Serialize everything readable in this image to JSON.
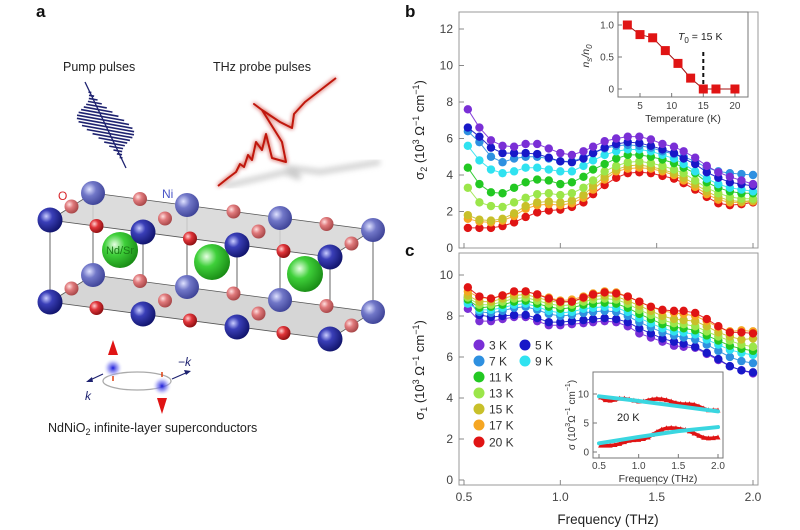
{
  "panel_a": {
    "label": "a",
    "pump_label": "Pump pulses",
    "probe_label": "THz probe pulses",
    "atom_o": "O",
    "atom_ni": "Ni",
    "atom_nd": "Nd/Sr",
    "k_label": "k",
    "minus_k_label": "−k",
    "caption_main": "NdNiO",
    "caption_sub": "2",
    "caption_rest": " infinite-layer superconductors",
    "colors": {
      "ni": "#2a2f9e",
      "o": "#d8262b",
      "nd": "#3fc43a",
      "pulse": "#1e2270",
      "thz": "#c0180c"
    }
  },
  "chart_data": [
    {
      "panel": "b",
      "type": "line",
      "ylabel": [
        {
          "t": "σ"
        },
        {
          "t": "2",
          "s": "sub"
        },
        {
          "t": " (10"
        },
        {
          "t": "3",
          "s": "sup"
        },
        {
          "t": " Ω"
        },
        {
          "t": "−1",
          "s": "sup"
        },
        {
          "t": " cm"
        },
        {
          "t": "−1",
          "s": "sup"
        },
        {
          "t": ")"
        }
      ],
      "xlabel": "",
      "ylim": [
        0,
        12.5
      ],
      "yticks": [
        "0",
        "2",
        "4",
        "6",
        "8",
        "10",
        "12"
      ],
      "xlim": [
        0.5,
        2.0
      ],
      "x": [
        0.52,
        0.58,
        0.64,
        0.7,
        0.76,
        0.82,
        0.88,
        0.94,
        1.0,
        1.06,
        1.12,
        1.17,
        1.23,
        1.29,
        1.35,
        1.41,
        1.47,
        1.53,
        1.59,
        1.64,
        1.7,
        1.76,
        1.82,
        1.88,
        1.94,
        2.0
      ],
      "series": [
        {
          "name": "3 K",
          "color": "#7a2fd6",
          "values": [
            7.6,
            6.6,
            5.9,
            5.6,
            5.55,
            5.7,
            5.7,
            5.45,
            5.2,
            5.1,
            5.3,
            5.55,
            5.85,
            6.0,
            6.1,
            6.1,
            5.95,
            5.7,
            5.55,
            5.3,
            4.95,
            4.5,
            4.15,
            3.9,
            3.7,
            3.5
          ]
        },
        {
          "name": "5 K",
          "color": "#1818c8",
          "values": [
            6.6,
            6.1,
            5.5,
            5.2,
            5.2,
            5.2,
            5.15,
            4.95,
            4.75,
            4.7,
            4.9,
            5.2,
            5.5,
            5.7,
            5.8,
            5.75,
            5.6,
            5.4,
            5.2,
            4.9,
            4.6,
            4.15,
            3.85,
            3.6,
            3.5,
            3.4
          ]
        },
        {
          "name": "7 K",
          "color": "#2e90e0",
          "values": [
            6.4,
            5.8,
            5.0,
            4.7,
            4.9,
            5.0,
            5.0,
            4.9,
            4.75,
            4.75,
            4.95,
            5.2,
            5.45,
            5.6,
            5.65,
            5.6,
            5.5,
            5.3,
            5.15,
            5.0,
            4.75,
            4.4,
            4.2,
            4.1,
            4.05,
            4.0
          ]
        },
        {
          "name": "9 K",
          "color": "#2fe2f0",
          "values": [
            5.6,
            4.8,
            4.3,
            4.1,
            4.2,
            4.4,
            4.4,
            4.3,
            4.2,
            4.2,
            4.5,
            4.8,
            5.1,
            5.3,
            5.4,
            5.4,
            5.3,
            5.1,
            4.9,
            4.6,
            4.2,
            3.8,
            3.5,
            3.3,
            3.2,
            3.1
          ]
        },
        {
          "name": "11 K",
          "color": "#22c822",
          "values": [
            4.4,
            3.5,
            3.05,
            3.0,
            3.3,
            3.6,
            3.75,
            3.7,
            3.5,
            3.6,
            3.9,
            4.3,
            4.6,
            4.9,
            5.1,
            5.1,
            5.0,
            4.85,
            4.65,
            4.4,
            4.1,
            3.6,
            3.3,
            3.1,
            3.0,
            3.0
          ]
        },
        {
          "name": "13 K",
          "color": "#9be64a",
          "values": [
            3.3,
            2.5,
            2.3,
            2.25,
            2.5,
            2.75,
            2.95,
            3.0,
            2.9,
            3.0,
            3.3,
            3.7,
            4.2,
            4.5,
            4.7,
            4.75,
            4.65,
            4.5,
            4.3,
            4.1,
            3.7,
            3.3,
            3.0,
            2.8,
            2.7,
            2.7
          ]
        },
        {
          "name": "15 K",
          "color": "#c8c02a",
          "values": [
            1.8,
            1.55,
            1.5,
            1.6,
            1.9,
            2.3,
            2.5,
            2.55,
            2.5,
            2.6,
            2.9,
            3.4,
            3.9,
            4.3,
            4.5,
            4.55,
            4.45,
            4.3,
            4.1,
            3.85,
            3.5,
            3.1,
            2.8,
            2.6,
            2.55,
            2.6
          ]
        },
        {
          "name": "17 K",
          "color": "#f5a623",
          "values": [
            1.6,
            1.45,
            1.4,
            1.5,
            1.75,
            2.15,
            2.35,
            2.4,
            2.35,
            2.45,
            2.75,
            3.2,
            3.75,
            4.2,
            4.35,
            4.4,
            4.35,
            4.2,
            4.0,
            3.7,
            3.35,
            2.95,
            2.65,
            2.5,
            2.5,
            2.55
          ]
        },
        {
          "name": "20 K",
          "color": "#e01414",
          "values": [
            1.1,
            1.1,
            1.1,
            1.2,
            1.4,
            1.7,
            1.95,
            2.05,
            2.1,
            2.25,
            2.5,
            2.95,
            3.45,
            3.85,
            4.1,
            4.15,
            4.1,
            3.95,
            3.8,
            3.55,
            3.2,
            2.8,
            2.45,
            2.35,
            2.4,
            2.5
          ]
        }
      ],
      "inset": {
        "type": "line",
        "xlabel": "Temperature (K)",
        "ylabel": [
          {
            "t": "n"
          },
          {
            "t": "s",
            "s": "sub"
          },
          {
            "t": "/"
          },
          {
            "t": "n"
          },
          {
            "t": "0",
            "s": "sub"
          }
        ],
        "annotation": [
          {
            "t": "T"
          },
          {
            "t": "0",
            "s": "sub"
          },
          {
            "t": " = 15 K"
          }
        ],
        "xticks": [
          "5",
          "10",
          "15",
          "20"
        ],
        "yticks": [
          "0",
          "0.5",
          "1.0"
        ],
        "x": [
          3,
          5,
          7,
          9,
          11,
          13,
          15,
          17,
          20
        ],
        "y": [
          1.0,
          0.85,
          0.8,
          0.6,
          0.4,
          0.17,
          0,
          0,
          0
        ],
        "dashed_line_x": 15,
        "color": "#e01414"
      }
    },
    {
      "panel": "c",
      "type": "line",
      "ylabel": [
        {
          "t": "σ"
        },
        {
          "t": "1",
          "s": "sub"
        },
        {
          "t": " (10"
        },
        {
          "t": "3",
          "s": "sup"
        },
        {
          "t": " Ω"
        },
        {
          "t": "−1",
          "s": "sup"
        },
        {
          "t": " cm"
        },
        {
          "t": "−1",
          "s": "sup"
        },
        {
          "t": ")"
        }
      ],
      "xlabel": "Frequency (THz)",
      "xticks": [
        "0.5",
        "1.0",
        "1.5",
        "2.0"
      ],
      "ylim": [
        0,
        11.5
      ],
      "yticks": [
        "0",
        "2",
        "4",
        "6",
        "8",
        "10"
      ],
      "legend_placement": "lower-left",
      "series": [
        {
          "name": "3 K",
          "color": "#7a2fd6",
          "values": [
            8.35,
            7.75,
            7.75,
            7.85,
            7.95,
            7.95,
            7.75,
            7.55,
            7.55,
            7.6,
            7.65,
            7.7,
            7.75,
            7.7,
            7.5,
            7.15,
            6.95,
            6.75,
            6.55,
            6.5,
            6.45,
            6.15,
            5.85,
            5.55,
            5.35,
            5.2
          ]
        },
        {
          "name": "5 K",
          "color": "#1818c8",
          "values": [
            8.9,
            8.05,
            7.95,
            8.0,
            8.05,
            8.05,
            7.9,
            7.7,
            7.7,
            7.75,
            7.8,
            7.85,
            7.9,
            7.85,
            7.7,
            7.4,
            7.15,
            6.9,
            6.75,
            6.65,
            6.5,
            6.2,
            5.9,
            5.55,
            5.35,
            5.25
          ]
        },
        {
          "name": "7 K",
          "color": "#2e90e0",
          "values": [
            8.7,
            8.2,
            8.15,
            8.25,
            8.4,
            8.45,
            8.3,
            8.1,
            8.0,
            8.05,
            8.15,
            8.2,
            8.25,
            8.2,
            8.0,
            7.7,
            7.45,
            7.2,
            7.05,
            6.95,
            6.85,
            6.6,
            6.3,
            6.0,
            5.8,
            5.7
          ]
        },
        {
          "name": "9 K",
          "color": "#2fe2f0",
          "values": [
            8.6,
            8.3,
            8.3,
            8.4,
            8.55,
            8.6,
            8.45,
            8.25,
            8.15,
            8.2,
            8.35,
            8.4,
            8.45,
            8.4,
            8.2,
            7.9,
            7.65,
            7.4,
            7.25,
            7.2,
            7.1,
            6.85,
            6.6,
            6.35,
            6.2,
            6.1
          ]
        },
        {
          "name": "11 K",
          "color": "#22c822",
          "values": [
            8.8,
            8.4,
            8.45,
            8.55,
            8.7,
            8.75,
            8.6,
            8.45,
            8.35,
            8.4,
            8.55,
            8.6,
            8.65,
            8.6,
            8.4,
            8.1,
            7.85,
            7.6,
            7.45,
            7.4,
            7.3,
            7.05,
            6.8,
            6.55,
            6.4,
            6.3
          ]
        },
        {
          "name": "13 K",
          "color": "#9be64a",
          "values": [
            8.9,
            8.55,
            8.55,
            8.7,
            8.85,
            8.9,
            8.75,
            8.6,
            8.5,
            8.55,
            8.7,
            8.8,
            8.85,
            8.8,
            8.6,
            8.3,
            8.05,
            7.8,
            7.65,
            7.6,
            7.5,
            7.25,
            7.0,
            6.8,
            6.6,
            6.5
          ]
        },
        {
          "name": "15 K",
          "color": "#c8c02a",
          "values": [
            9.0,
            8.7,
            8.7,
            8.85,
            9.0,
            9.05,
            8.9,
            8.75,
            8.65,
            8.7,
            8.85,
            8.95,
            9.0,
            8.95,
            8.75,
            8.5,
            8.25,
            8.0,
            7.85,
            7.8,
            7.75,
            7.5,
            7.2,
            7.0,
            6.85,
            6.9
          ]
        },
        {
          "name": "17 K",
          "color": "#f5a623",
          "values": [
            9.2,
            8.9,
            8.85,
            9.0,
            9.15,
            9.2,
            9.05,
            8.9,
            8.75,
            8.8,
            8.95,
            9.1,
            9.2,
            9.15,
            8.95,
            8.7,
            8.45,
            8.25,
            8.15,
            8.1,
            8.0,
            7.75,
            7.45,
            7.25,
            7.3,
            7.25
          ]
        },
        {
          "name": "20 K",
          "color": "#e01414",
          "values": [
            9.4,
            8.95,
            8.85,
            9.0,
            9.2,
            9.2,
            9.05,
            8.85,
            8.7,
            8.7,
            8.9,
            9.05,
            9.15,
            9.1,
            8.95,
            8.7,
            8.45,
            8.3,
            8.25,
            8.25,
            8.15,
            7.85,
            7.5,
            7.2,
            7.2,
            7.15
          ]
        }
      ],
      "inset": {
        "type": "line",
        "xlabel": "Frequency (THz)",
        "ylabel": [
          {
            "t": "σ (10"
          },
          {
            "t": "3",
            "s": "sup"
          },
          {
            "t": "Ω"
          },
          {
            "t": "−1",
            "s": "sup"
          },
          {
            "t": " cm"
          },
          {
            "t": "−1",
            "s": "sup"
          },
          {
            "t": ")"
          }
        ],
        "annotation": "20 K",
        "xticks": [
          "0.5",
          "1.0",
          "1.5",
          "2.0"
        ],
        "yticks": [
          "0",
          "5",
          "10"
        ],
        "data_color": "#e01414",
        "fit_color": "#3ad6e0",
        "fit_x": [
          0.5,
          1.0,
          1.5,
          2.0
        ],
        "fit_real": [
          9.6,
          8.8,
          7.9,
          7.0
        ],
        "fit_imag": [
          1.5,
          2.6,
          3.6,
          4.3
        ]
      }
    }
  ]
}
